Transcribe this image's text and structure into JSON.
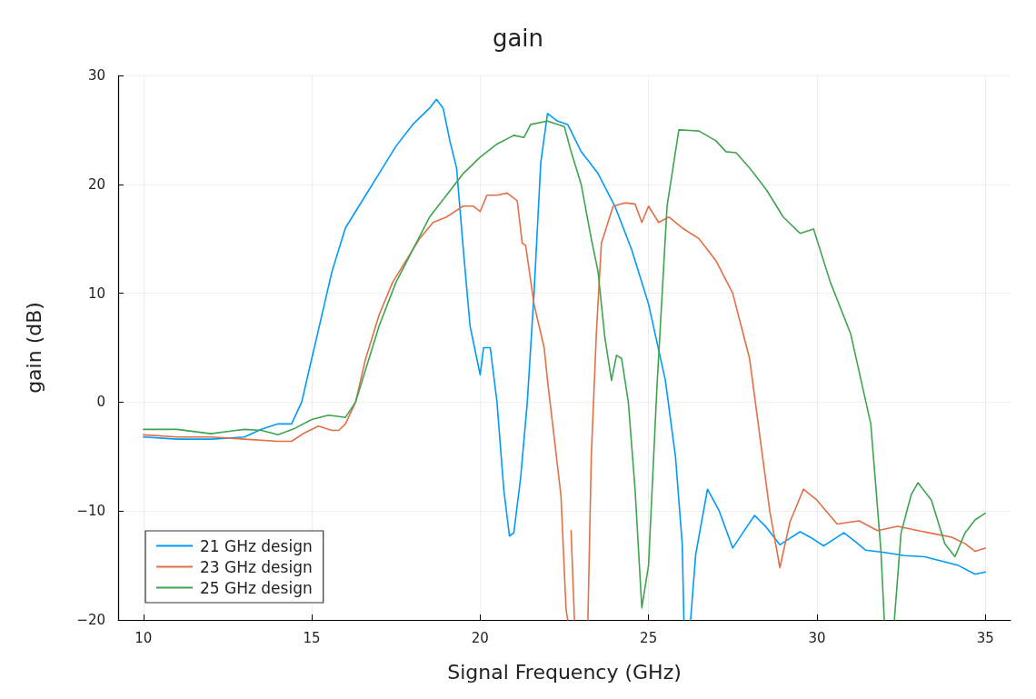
{
  "chart_data": {
    "type": "line",
    "title": "gain",
    "xlabel": "Signal Frequency (GHz)",
    "ylabel": "gain (dB)",
    "xlim": [
      9.25,
      35.75
    ],
    "ylim": [
      -20,
      30
    ],
    "xticks": [
      10,
      15,
      20,
      25,
      30,
      35
    ],
    "yticks": [
      -20,
      -10,
      0,
      10,
      20,
      30
    ],
    "grid": true,
    "legend": "bottom left",
    "marker": "none",
    "line_style": "solid",
    "series": [
      {
        "name": "21 GHz design",
        "color": "#009af9",
        "x": [
          10,
          11,
          12,
          13,
          13.5,
          14,
          14.4,
          14.7,
          15,
          15.3,
          15.6,
          16,
          16.5,
          17,
          17.5,
          18,
          18.5,
          18.7,
          18.9,
          19.1,
          19.3,
          19.5,
          19.7,
          19.9,
          20,
          20.1,
          20.3,
          20.5,
          20.7,
          20.87,
          21.0,
          21.2,
          21.4,
          21.6,
          21.8,
          22.0,
          22.3,
          22.6,
          23,
          23.5,
          24,
          24.5,
          25,
          25.5,
          25.8,
          26.0,
          26.05,
          26.2,
          26.25,
          26.4,
          26.75,
          27.1,
          27.5,
          27.8,
          28.15,
          28.5,
          28.9,
          29.2,
          29.5,
          29.8,
          30.2,
          30.5,
          30.8,
          31.1,
          31.45,
          32,
          32.6,
          33.2,
          33.7,
          34.2,
          34.7,
          35
        ],
        "values": [
          -3.2,
          -3.4,
          -3.4,
          -3.2,
          -2.5,
          -2,
          -2,
          0,
          4,
          8,
          12,
          16,
          18.5,
          21,
          23.5,
          25.5,
          27,
          27.8,
          27,
          24,
          21.5,
          14,
          7,
          4,
          2.5,
          5,
          5,
          0,
          -8,
          -12.3,
          -12,
          -7,
          0,
          10,
          22,
          26.5,
          25.8,
          25.5,
          23,
          21,
          18,
          14,
          9,
          2,
          -5,
          -13,
          -20,
          null,
          -20,
          -14,
          -8,
          -10,
          -13.4,
          -12,
          -10.4,
          -11.5,
          -13.1,
          -12.5,
          -11.9,
          -12.4,
          -13.2,
          -12.6,
          -12,
          -12.7,
          -13.6,
          -13.8,
          -14.1,
          -14.2,
          -14.6,
          -15,
          -15.8,
          -15.6
        ]
      },
      {
        "name": "23 GHz design",
        "color": "#e26f46",
        "x": [
          10,
          11,
          12,
          13,
          14,
          14.4,
          14.8,
          15.2,
          15.6,
          15.8,
          16,
          16.3,
          16.6,
          17,
          17.4,
          17.8,
          18.2,
          18.6,
          19,
          19.5,
          19.8,
          20,
          20.2,
          20.5,
          20.8,
          21.1,
          21.25,
          21.35,
          21.6,
          21.9,
          22.0,
          22.2,
          22.4,
          22.55,
          22.6,
          22.62,
          22.7,
          22.8,
          22.85,
          23.2,
          23.3,
          23.45,
          23.6,
          23.95,
          24.3,
          24.6,
          24.8,
          25,
          25.3,
          25.6,
          26,
          26.5,
          27,
          27.5,
          28,
          28.3,
          28.6,
          28.9,
          29.2,
          29.6,
          30,
          30.6,
          31.25,
          31.8,
          32.4,
          33,
          33.5,
          34,
          34.4,
          34.7,
          35
        ],
        "values": [
          -3,
          -3.2,
          -3.2,
          -3.4,
          -3.6,
          -3.6,
          -2.8,
          -2.2,
          -2.6,
          -2.6,
          -2,
          0,
          4,
          8,
          11,
          13,
          15,
          16.5,
          17,
          18,
          18,
          17.5,
          19,
          19,
          19.2,
          18.5,
          14.6,
          14.4,
          9,
          5,
          2,
          -3.3,
          -8.6,
          -19,
          -20,
          null,
          -11.8,
          -20,
          null,
          -20,
          -5,
          6.3,
          14.6,
          18,
          18.3,
          18.2,
          16.5,
          18,
          16.5,
          17,
          16,
          15,
          13,
          10,
          4,
          -3,
          -10,
          -15.2,
          -11,
          -8,
          -9,
          -11.2,
          -10.9,
          -11.8,
          -11.4,
          -11.8,
          -12.1,
          -12.4,
          -13,
          -13.7,
          -13.4
        ]
      },
      {
        "name": "25 GHz design",
        "color": "#3ea44e",
        "x": [
          10,
          11,
          12,
          13,
          13.5,
          14,
          14.5,
          15,
          15.5,
          16,
          16.3,
          16.6,
          17,
          17.5,
          18,
          18.5,
          19,
          19.5,
          20,
          20.5,
          21,
          21.3,
          21.5,
          22,
          22.5,
          22.7,
          23,
          23.3,
          23.5,
          23.7,
          23.9,
          24.05,
          24.2,
          24.4,
          24.6,
          24.8,
          25.0,
          25.25,
          25.55,
          25.9,
          26.5,
          27,
          27.3,
          27.6,
          28,
          28.5,
          29,
          29.5,
          29.9,
          30.4,
          31.0,
          31.6,
          31.9,
          32.0,
          32.1,
          32.3,
          32.5,
          32.8,
          33.0,
          33.4,
          33.8,
          34.1,
          34.4,
          34.7,
          35
        ],
        "values": [
          -2.5,
          -2.5,
          -2.9,
          -2.5,
          -2.6,
          -3,
          -2.4,
          -1.6,
          -1.2,
          -1.4,
          0,
          3,
          7,
          11,
          14,
          17,
          19,
          21,
          22.5,
          23.7,
          24.5,
          24.3,
          25.5,
          25.8,
          25.3,
          23,
          20,
          15,
          12,
          6,
          2,
          4.3,
          4,
          0,
          -8,
          -18.9,
          -15,
          1.4,
          18,
          25,
          24.9,
          24,
          23,
          22.9,
          21.5,
          19.5,
          17,
          15.5,
          15.9,
          11,
          6.3,
          -2,
          -13.6,
          -20,
          null,
          -20,
          -12,
          -8.5,
          -7.4,
          -9,
          -13,
          -14.2,
          -12,
          -10.8,
          -10.2
        ]
      }
    ]
  }
}
